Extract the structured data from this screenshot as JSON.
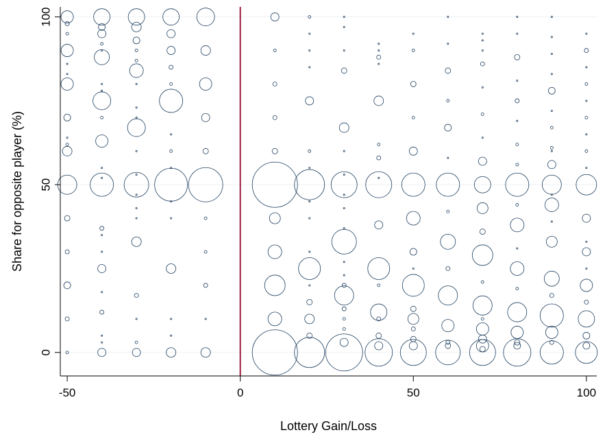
{
  "chart_data": {
    "type": "scatter",
    "title": "",
    "xlabel": "Lottery Gain/Loss",
    "ylabel": "Share for opposite player (%)",
    "xlim": [
      -52,
      103
    ],
    "ylim": [
      -7,
      103
    ],
    "x_ticks": [
      -50,
      0,
      50,
      100
    ],
    "y_ticks": [
      0,
      50,
      100
    ],
    "grid": "horizontal",
    "bubble_color": "#1f3f5f",
    "reference_line": {
      "x": 0,
      "color": "#9b1b40"
    },
    "marker_size_unit": "radius in relative units",
    "points": [
      {
        "x": -50,
        "y": 100,
        "s": 9
      },
      {
        "x": -50,
        "y": 98,
        "s": 3
      },
      {
        "x": -50,
        "y": 95,
        "s": 2
      },
      {
        "x": -50,
        "y": 90,
        "s": 9
      },
      {
        "x": -50,
        "y": 86,
        "s": 1
      },
      {
        "x": -50,
        "y": 83,
        "s": 1
      },
      {
        "x": -50,
        "y": 80,
        "s": 9
      },
      {
        "x": -50,
        "y": 70,
        "s": 5
      },
      {
        "x": -50,
        "y": 64,
        "s": 1
      },
      {
        "x": -50,
        "y": 62,
        "s": 2
      },
      {
        "x": -50,
        "y": 60,
        "s": 7
      },
      {
        "x": -50,
        "y": 50,
        "s": 14
      },
      {
        "x": -50,
        "y": 40,
        "s": 4
      },
      {
        "x": -50,
        "y": 30,
        "s": 3
      },
      {
        "x": -50,
        "y": 20,
        "s": 5
      },
      {
        "x": -50,
        "y": 10,
        "s": 3
      },
      {
        "x": -50,
        "y": 0,
        "s": 2
      },
      {
        "x": -40,
        "y": 100,
        "s": 12
      },
      {
        "x": -40,
        "y": 97,
        "s": 5
      },
      {
        "x": -40,
        "y": 95,
        "s": 6
      },
      {
        "x": -40,
        "y": 92,
        "s": 2
      },
      {
        "x": -40,
        "y": 90,
        "s": 1
      },
      {
        "x": -40,
        "y": 88,
        "s": 11
      },
      {
        "x": -40,
        "y": 80,
        "s": 1
      },
      {
        "x": -40,
        "y": 78,
        "s": 1
      },
      {
        "x": -40,
        "y": 75,
        "s": 13
      },
      {
        "x": -40,
        "y": 70,
        "s": 2
      },
      {
        "x": -40,
        "y": 63,
        "s": 9
      },
      {
        "x": -40,
        "y": 55,
        "s": 1
      },
      {
        "x": -40,
        "y": 52,
        "s": 1
      },
      {
        "x": -40,
        "y": 50,
        "s": 17
      },
      {
        "x": -40,
        "y": 37,
        "s": 3
      },
      {
        "x": -40,
        "y": 35,
        "s": 1
      },
      {
        "x": -40,
        "y": 30,
        "s": 1
      },
      {
        "x": -40,
        "y": 25,
        "s": 6
      },
      {
        "x": -40,
        "y": 18,
        "s": 1
      },
      {
        "x": -40,
        "y": 12,
        "s": 3
      },
      {
        "x": -40,
        "y": 5,
        "s": 1
      },
      {
        "x": -40,
        "y": 3,
        "s": 1
      },
      {
        "x": -40,
        "y": 0,
        "s": 6
      },
      {
        "x": -30,
        "y": 100,
        "s": 12
      },
      {
        "x": -30,
        "y": 97,
        "s": 7
      },
      {
        "x": -30,
        "y": 93,
        "s": 5
      },
      {
        "x": -30,
        "y": 90,
        "s": 2
      },
      {
        "x": -30,
        "y": 87,
        "s": 2
      },
      {
        "x": -30,
        "y": 84,
        "s": 10
      },
      {
        "x": -30,
        "y": 80,
        "s": 1
      },
      {
        "x": -30,
        "y": 73,
        "s": 1
      },
      {
        "x": -30,
        "y": 70,
        "s": 1
      },
      {
        "x": -30,
        "y": 67,
        "s": 13
      },
      {
        "x": -30,
        "y": 60,
        "s": 1
      },
      {
        "x": -30,
        "y": 53,
        "s": 1
      },
      {
        "x": -30,
        "y": 50,
        "s": 18
      },
      {
        "x": -30,
        "y": 47,
        "s": 1
      },
      {
        "x": -30,
        "y": 43,
        "s": 1
      },
      {
        "x": -30,
        "y": 40,
        "s": 1
      },
      {
        "x": -30,
        "y": 33,
        "s": 7
      },
      {
        "x": -30,
        "y": 17,
        "s": 3
      },
      {
        "x": -30,
        "y": 10,
        "s": 1
      },
      {
        "x": -30,
        "y": 3,
        "s": 2
      },
      {
        "x": -30,
        "y": 0,
        "s": 6
      },
      {
        "x": -20,
        "y": 100,
        "s": 12
      },
      {
        "x": -20,
        "y": 95,
        "s": 6
      },
      {
        "x": -20,
        "y": 90,
        "s": 6
      },
      {
        "x": -20,
        "y": 85,
        "s": 3
      },
      {
        "x": -20,
        "y": 80,
        "s": 2
      },
      {
        "x": -20,
        "y": 75,
        "s": 17
      },
      {
        "x": -20,
        "y": 65,
        "s": 1
      },
      {
        "x": -20,
        "y": 60,
        "s": 2
      },
      {
        "x": -20,
        "y": 55,
        "s": 1
      },
      {
        "x": -20,
        "y": 50,
        "s": 24
      },
      {
        "x": -20,
        "y": 45,
        "s": 1
      },
      {
        "x": -20,
        "y": 40,
        "s": 1
      },
      {
        "x": -20,
        "y": 25,
        "s": 7
      },
      {
        "x": -20,
        "y": 10,
        "s": 1
      },
      {
        "x": -20,
        "y": 5,
        "s": 1
      },
      {
        "x": -20,
        "y": 0,
        "s": 7
      },
      {
        "x": -10,
        "y": 100,
        "s": 13
      },
      {
        "x": -10,
        "y": 90,
        "s": 7
      },
      {
        "x": -10,
        "y": 80,
        "s": 9
      },
      {
        "x": -10,
        "y": 70,
        "s": 6
      },
      {
        "x": -10,
        "y": 60,
        "s": 4
      },
      {
        "x": -10,
        "y": 50,
        "s": 25
      },
      {
        "x": -10,
        "y": 40,
        "s": 2
      },
      {
        "x": -10,
        "y": 30,
        "s": 2
      },
      {
        "x": -10,
        "y": 20,
        "s": 3
      },
      {
        "x": -10,
        "y": 10,
        "s": 1
      },
      {
        "x": -10,
        "y": 0,
        "s": 7
      },
      {
        "x": 10,
        "y": 100,
        "s": 6
      },
      {
        "x": 10,
        "y": 90,
        "s": 2
      },
      {
        "x": 10,
        "y": 80,
        "s": 3
      },
      {
        "x": 10,
        "y": 70,
        "s": 3
      },
      {
        "x": 10,
        "y": 60,
        "s": 4
      },
      {
        "x": 10,
        "y": 50,
        "s": 33
      },
      {
        "x": 10,
        "y": 40,
        "s": 8
      },
      {
        "x": 10,
        "y": 30,
        "s": 10
      },
      {
        "x": 10,
        "y": 20,
        "s": 15
      },
      {
        "x": 10,
        "y": 10,
        "s": 10
      },
      {
        "x": 10,
        "y": 0,
        "s": 33
      },
      {
        "x": 20,
        "y": 100,
        "s": 2
      },
      {
        "x": 20,
        "y": 95,
        "s": 1
      },
      {
        "x": 20,
        "y": 90,
        "s": 1
      },
      {
        "x": 20,
        "y": 85,
        "s": 1
      },
      {
        "x": 20,
        "y": 75,
        "s": 6
      },
      {
        "x": 20,
        "y": 60,
        "s": 2
      },
      {
        "x": 20,
        "y": 55,
        "s": 1
      },
      {
        "x": 20,
        "y": 50,
        "s": 22
      },
      {
        "x": 20,
        "y": 45,
        "s": 1
      },
      {
        "x": 20,
        "y": 40,
        "s": 1
      },
      {
        "x": 20,
        "y": 30,
        "s": 1
      },
      {
        "x": 20,
        "y": 25,
        "s": 16
      },
      {
        "x": 20,
        "y": 20,
        "s": 1
      },
      {
        "x": 20,
        "y": 15,
        "s": 4
      },
      {
        "x": 20,
        "y": 10,
        "s": 7
      },
      {
        "x": 20,
        "y": 5,
        "s": 4
      },
      {
        "x": 20,
        "y": 0,
        "s": 22
      },
      {
        "x": 30,
        "y": 100,
        "s": 1
      },
      {
        "x": 30,
        "y": 97,
        "s": 1
      },
      {
        "x": 30,
        "y": 90,
        "s": 1
      },
      {
        "x": 30,
        "y": 84,
        "s": 4
      },
      {
        "x": 30,
        "y": 67,
        "s": 7
      },
      {
        "x": 30,
        "y": 60,
        "s": 1
      },
      {
        "x": 30,
        "y": 53,
        "s": 1
      },
      {
        "x": 30,
        "y": 50,
        "s": 19
      },
      {
        "x": 30,
        "y": 47,
        "s": 1
      },
      {
        "x": 30,
        "y": 43,
        "s": 1
      },
      {
        "x": 30,
        "y": 37,
        "s": 1
      },
      {
        "x": 30,
        "y": 33,
        "s": 18
      },
      {
        "x": 30,
        "y": 27,
        "s": 1
      },
      {
        "x": 30,
        "y": 23,
        "s": 1
      },
      {
        "x": 30,
        "y": 20,
        "s": 3
      },
      {
        "x": 30,
        "y": 17,
        "s": 14
      },
      {
        "x": 30,
        "y": 13,
        "s": 3
      },
      {
        "x": 30,
        "y": 10,
        "s": 2
      },
      {
        "x": 30,
        "y": 7,
        "s": 2
      },
      {
        "x": 30,
        "y": 3,
        "s": 6
      },
      {
        "x": 30,
        "y": 0,
        "s": 27
      },
      {
        "x": 40,
        "y": 92,
        "s": 1
      },
      {
        "x": 40,
        "y": 90,
        "s": 1
      },
      {
        "x": 40,
        "y": 88,
        "s": 3
      },
      {
        "x": 40,
        "y": 86,
        "s": 1
      },
      {
        "x": 40,
        "y": 75,
        "s": 7
      },
      {
        "x": 40,
        "y": 62,
        "s": 2
      },
      {
        "x": 40,
        "y": 58,
        "s": 3
      },
      {
        "x": 40,
        "y": 52,
        "s": 1
      },
      {
        "x": 40,
        "y": 50,
        "s": 19
      },
      {
        "x": 40,
        "y": 38,
        "s": 6
      },
      {
        "x": 40,
        "y": 25,
        "s": 16
      },
      {
        "x": 40,
        "y": 20,
        "s": 2
      },
      {
        "x": 40,
        "y": 12,
        "s": 12
      },
      {
        "x": 40,
        "y": 10,
        "s": 3
      },
      {
        "x": 40,
        "y": 5,
        "s": 4
      },
      {
        "x": 40,
        "y": 2,
        "s": 6
      },
      {
        "x": 40,
        "y": 0,
        "s": 20
      },
      {
        "x": 50,
        "y": 95,
        "s": 1
      },
      {
        "x": 50,
        "y": 90,
        "s": 2
      },
      {
        "x": 50,
        "y": 80,
        "s": 4
      },
      {
        "x": 50,
        "y": 70,
        "s": 2
      },
      {
        "x": 50,
        "y": 60,
        "s": 6
      },
      {
        "x": 50,
        "y": 50,
        "s": 17
      },
      {
        "x": 50,
        "y": 40,
        "s": 10
      },
      {
        "x": 50,
        "y": 30,
        "s": 5
      },
      {
        "x": 50,
        "y": 25,
        "s": 1
      },
      {
        "x": 50,
        "y": 20,
        "s": 16
      },
      {
        "x": 50,
        "y": 13,
        "s": 4
      },
      {
        "x": 50,
        "y": 10,
        "s": 8
      },
      {
        "x": 50,
        "y": 7,
        "s": 3
      },
      {
        "x": 50,
        "y": 4,
        "s": 4
      },
      {
        "x": 50,
        "y": 2,
        "s": 6
      },
      {
        "x": 50,
        "y": 0,
        "s": 19
      },
      {
        "x": 60,
        "y": 100,
        "s": 1
      },
      {
        "x": 60,
        "y": 92,
        "s": 1
      },
      {
        "x": 60,
        "y": 84,
        "s": 4
      },
      {
        "x": 60,
        "y": 75,
        "s": 2
      },
      {
        "x": 60,
        "y": 67,
        "s": 5
      },
      {
        "x": 60,
        "y": 58,
        "s": 1
      },
      {
        "x": 60,
        "y": 50,
        "s": 17
      },
      {
        "x": 60,
        "y": 42,
        "s": 2
      },
      {
        "x": 60,
        "y": 33,
        "s": 11
      },
      {
        "x": 60,
        "y": 25,
        "s": 3
      },
      {
        "x": 60,
        "y": 17,
        "s": 14
      },
      {
        "x": 60,
        "y": 8,
        "s": 9
      },
      {
        "x": 60,
        "y": 3,
        "s": 3
      },
      {
        "x": 60,
        "y": 2,
        "s": 4
      },
      {
        "x": 60,
        "y": 0,
        "s": 18
      },
      {
        "x": 70,
        "y": 95,
        "s": 1
      },
      {
        "x": 70,
        "y": 93,
        "s": 1
      },
      {
        "x": 70,
        "y": 90,
        "s": 1
      },
      {
        "x": 70,
        "y": 86,
        "s": 3
      },
      {
        "x": 70,
        "y": 79,
        "s": 1
      },
      {
        "x": 70,
        "y": 71,
        "s": 2
      },
      {
        "x": 70,
        "y": 64,
        "s": 1
      },
      {
        "x": 70,
        "y": 57,
        "s": 6
      },
      {
        "x": 70,
        "y": 50,
        "s": 12
      },
      {
        "x": 70,
        "y": 43,
        "s": 8
      },
      {
        "x": 70,
        "y": 36,
        "s": 4
      },
      {
        "x": 70,
        "y": 29,
        "s": 15
      },
      {
        "x": 70,
        "y": 21,
        "s": 2
      },
      {
        "x": 70,
        "y": 14,
        "s": 14
      },
      {
        "x": 70,
        "y": 10,
        "s": 2
      },
      {
        "x": 70,
        "y": 7,
        "s": 9
      },
      {
        "x": 70,
        "y": 4,
        "s": 6
      },
      {
        "x": 70,
        "y": 2,
        "s": 9
      },
      {
        "x": 70,
        "y": 1,
        "s": 4
      },
      {
        "x": 70,
        "y": 0,
        "s": 19
      },
      {
        "x": 80,
        "y": 100,
        "s": 1
      },
      {
        "x": 80,
        "y": 95,
        "s": 1
      },
      {
        "x": 80,
        "y": 88,
        "s": 4
      },
      {
        "x": 80,
        "y": 81,
        "s": 1
      },
      {
        "x": 80,
        "y": 75,
        "s": 3
      },
      {
        "x": 80,
        "y": 69,
        "s": 1
      },
      {
        "x": 80,
        "y": 62,
        "s": 2
      },
      {
        "x": 80,
        "y": 56,
        "s": 2
      },
      {
        "x": 80,
        "y": 50,
        "s": 17
      },
      {
        "x": 80,
        "y": 44,
        "s": 2
      },
      {
        "x": 80,
        "y": 38,
        "s": 10
      },
      {
        "x": 80,
        "y": 31,
        "s": 1
      },
      {
        "x": 80,
        "y": 25,
        "s": 10
      },
      {
        "x": 80,
        "y": 19,
        "s": 2
      },
      {
        "x": 80,
        "y": 12,
        "s": 14
      },
      {
        "x": 80,
        "y": 6,
        "s": 9
      },
      {
        "x": 80,
        "y": 3,
        "s": 4
      },
      {
        "x": 80,
        "y": 2,
        "s": 5
      },
      {
        "x": 80,
        "y": 0,
        "s": 20
      },
      {
        "x": 90,
        "y": 100,
        "s": 1
      },
      {
        "x": 90,
        "y": 94,
        "s": 1
      },
      {
        "x": 90,
        "y": 89,
        "s": 1
      },
      {
        "x": 90,
        "y": 83,
        "s": 1
      },
      {
        "x": 90,
        "y": 78,
        "s": 5
      },
      {
        "x": 90,
        "y": 72,
        "s": 1
      },
      {
        "x": 90,
        "y": 67,
        "s": 2
      },
      {
        "x": 90,
        "y": 61,
        "s": 2
      },
      {
        "x": 90,
        "y": 60,
        "s": 1
      },
      {
        "x": 90,
        "y": 56,
        "s": 6
      },
      {
        "x": 90,
        "y": 50,
        "s": 14
      },
      {
        "x": 90,
        "y": 47,
        "s": 1
      },
      {
        "x": 90,
        "y": 44,
        "s": 10
      },
      {
        "x": 90,
        "y": 39,
        "s": 1
      },
      {
        "x": 90,
        "y": 33,
        "s": 8
      },
      {
        "x": 90,
        "y": 22,
        "s": 11
      },
      {
        "x": 90,
        "y": 17,
        "s": 3
      },
      {
        "x": 90,
        "y": 11,
        "s": 17
      },
      {
        "x": 90,
        "y": 6,
        "s": 9
      },
      {
        "x": 90,
        "y": 3,
        "s": 3
      },
      {
        "x": 90,
        "y": 0,
        "s": 17
      },
      {
        "x": 100,
        "y": 95,
        "s": 1
      },
      {
        "x": 100,
        "y": 90,
        "s": 3
      },
      {
        "x": 100,
        "y": 85,
        "s": 1
      },
      {
        "x": 100,
        "y": 80,
        "s": 2
      },
      {
        "x": 100,
        "y": 75,
        "s": 1
      },
      {
        "x": 100,
        "y": 70,
        "s": 2
      },
      {
        "x": 100,
        "y": 65,
        "s": 1
      },
      {
        "x": 100,
        "y": 60,
        "s": 2
      },
      {
        "x": 100,
        "y": 55,
        "s": 1
      },
      {
        "x": 100,
        "y": 50,
        "s": 15
      },
      {
        "x": 100,
        "y": 40,
        "s": 6
      },
      {
        "x": 100,
        "y": 33,
        "s": 1
      },
      {
        "x": 100,
        "y": 30,
        "s": 6
      },
      {
        "x": 100,
        "y": 25,
        "s": 1
      },
      {
        "x": 100,
        "y": 20,
        "s": 9
      },
      {
        "x": 100,
        "y": 15,
        "s": 3
      },
      {
        "x": 100,
        "y": 10,
        "s": 12
      },
      {
        "x": 100,
        "y": 5,
        "s": 5
      },
      {
        "x": 100,
        "y": 2,
        "s": 5
      },
      {
        "x": 100,
        "y": 0,
        "s": 16
      }
    ]
  }
}
